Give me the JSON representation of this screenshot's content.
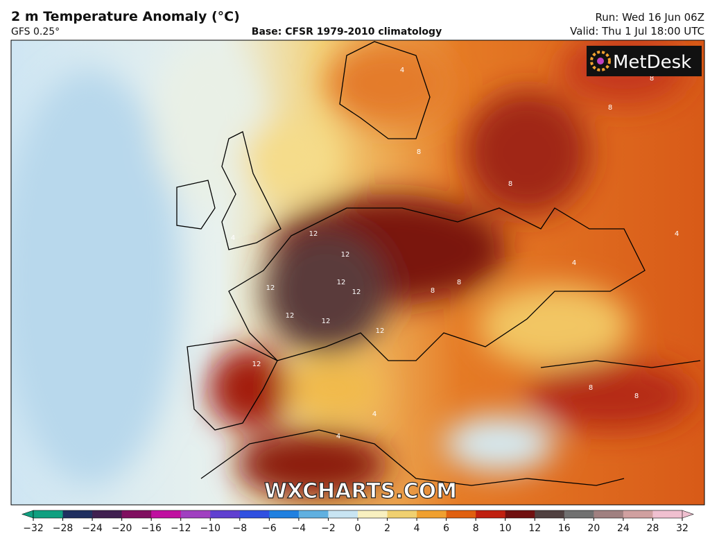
{
  "header": {
    "title": "2 m Temperature Anomaly (°C)",
    "model": "GFS 0.25°",
    "base": "Base: CFSR 1979-2010 climatology",
    "run": "Run: Wed 16 Jun 06Z",
    "valid": "Valid: Thu 1 Jul 18:00 UTC"
  },
  "logo": "MetDesk",
  "watermark": "WXCHARTS.COM",
  "contour_labels": [
    "12",
    "12",
    "12",
    "12",
    "12",
    "12",
    "12",
    "12",
    "12",
    "8",
    "8",
    "8",
    "8",
    "8",
    "8",
    "8",
    "8",
    "4",
    "4",
    "4",
    "4",
    "4",
    "4"
  ],
  "colorbar": {
    "ticks": [
      {
        "value": -32,
        "label": "−32"
      },
      {
        "value": -28,
        "label": "−28"
      },
      {
        "value": -24,
        "label": "−24"
      },
      {
        "value": -20,
        "label": "−20"
      },
      {
        "value": -16,
        "label": "−16"
      },
      {
        "value": -12,
        "label": "−12"
      },
      {
        "value": -10,
        "label": "−10"
      },
      {
        "value": -8,
        "label": "−8"
      },
      {
        "value": -6,
        "label": "−6"
      },
      {
        "value": -4,
        "label": "−4"
      },
      {
        "value": -2,
        "label": "−2"
      },
      0,
      2,
      4,
      6,
      8,
      10,
      12,
      16,
      20,
      24,
      28,
      32
    ],
    "colors": [
      "#10a080",
      "#203060",
      "#402050",
      "#801060",
      "#c010a0",
      "#a040c0",
      "#6040d0",
      "#3050e0",
      "#2080e0",
      "#60b0e0",
      "#c8e4f2",
      "#f8f0c0",
      "#f0d070",
      "#f0a030",
      "#e06010",
      "#c02010",
      "#701010",
      "#504040",
      "#707070",
      "#a08080",
      "#d0a0a0",
      "#f0c0d0"
    ]
  }
}
